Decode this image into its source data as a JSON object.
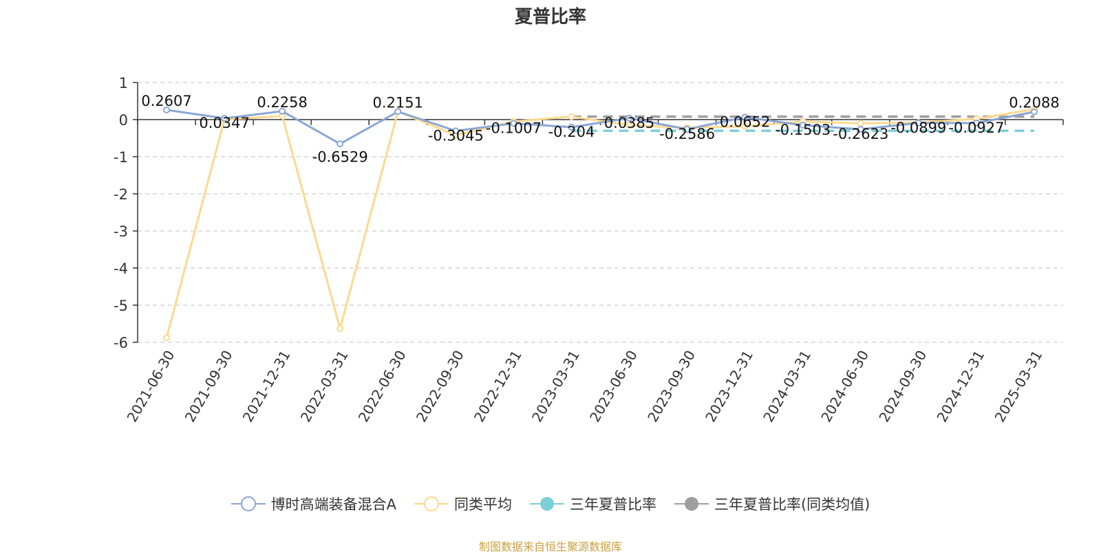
{
  "title": "夏普比率",
  "source_note": "制图数据来自恒生聚源数据库",
  "colors": {
    "fund": "#8aa6d6",
    "category_avg": "#fcd98e",
    "sharpe_3y": "#7ccfd6",
    "sharpe_3y_avg": "#9e9e9e"
  },
  "legend": [
    {
      "label": "博时高端装备混合A",
      "color": "#8aa6d6",
      "marker": "hollow-circle"
    },
    {
      "label": "同类平均",
      "color": "#fcd98e",
      "marker": "hollow-circle"
    },
    {
      "label": "三年夏普比率",
      "color": "#7ccfd6",
      "marker": "filled-circle"
    },
    {
      "label": "三年夏普比率(同类均值)",
      "color": "#9e9e9e",
      "marker": "filled-circle"
    }
  ],
  "chart_data": {
    "type": "line",
    "title": "夏普比率",
    "categories": [
      "2021-06-30",
      "2021-09-30",
      "2021-12-31",
      "2022-03-31",
      "2022-06-30",
      "2022-09-30",
      "2022-12-31",
      "2023-03-31",
      "2023-06-30",
      "2023-09-30",
      "2023-12-31",
      "2024-03-31",
      "2024-06-30",
      "2024-09-30",
      "2024-12-31",
      "2025-03-31"
    ],
    "ylim": [
      -6,
      1
    ],
    "yticks": [
      1,
      0,
      -1,
      -2,
      -3,
      -4,
      -5,
      -6
    ],
    "grid": true,
    "legend_position": "bottom",
    "series": [
      {
        "name": "博时高端装备混合A",
        "values": [
          0.2607,
          0.0347,
          0.2258,
          -0.6529,
          0.2151,
          -0.3045,
          -0.1007,
          -0.204,
          0.0385,
          -0.2586,
          0.0652,
          -0.1503,
          -0.2623,
          -0.0899,
          -0.0927,
          0.2088
        ],
        "labels": [
          "0.2607",
          "0.0347",
          "0.2258",
          "-0.6529",
          "0.2151",
          "-0.3045",
          "-0.1007",
          "-0.204",
          "0.0385",
          "-0.2586",
          "0.0652",
          "-0.1503",
          "-0.2623",
          "-0.0899",
          "-0.0927",
          "0.2088"
        ]
      },
      {
        "name": "同类平均",
        "values": [
          -5.88,
          0.0,
          0.1,
          -5.63,
          0.22,
          -0.42,
          -0.05,
          0.08,
          -0.15,
          -0.22,
          -0.18,
          -0.05,
          -0.1,
          -0.08,
          0.02,
          0.28
        ]
      },
      {
        "name": "三年夏普比率",
        "values": [
          null,
          null,
          null,
          null,
          null,
          null,
          null,
          -0.3,
          -0.3,
          -0.3,
          -0.3,
          -0.3,
          -0.3,
          -0.3,
          -0.3,
          -0.3
        ]
      },
      {
        "name": "三年夏普比率(同类均值)",
        "values": [
          null,
          null,
          null,
          null,
          null,
          null,
          null,
          0.08,
          0.08,
          0.08,
          0.08,
          0.08,
          0.08,
          0.08,
          0.08,
          0.08
        ]
      }
    ]
  }
}
